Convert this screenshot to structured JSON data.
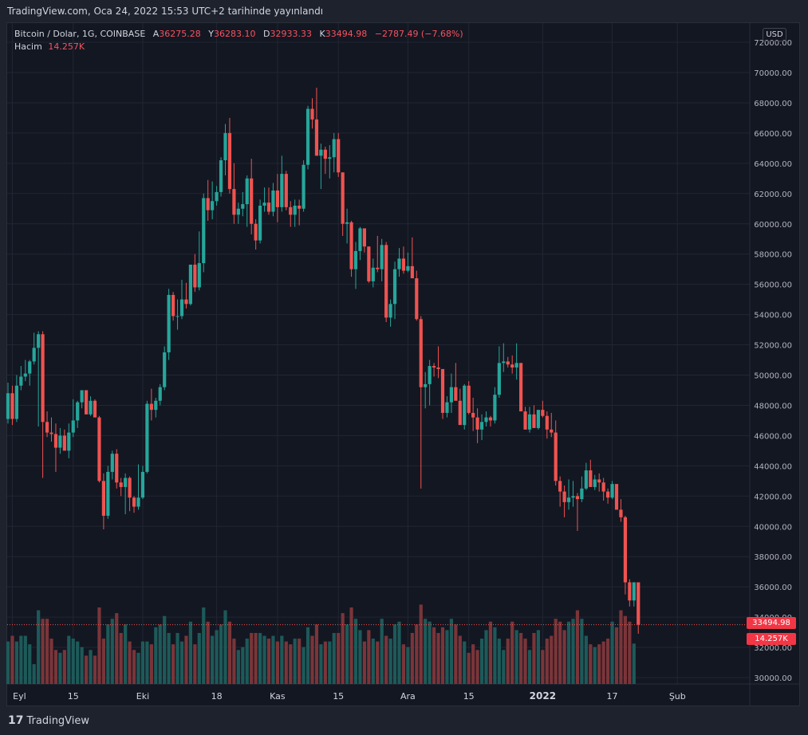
{
  "header": {
    "publish_info": "TradingView.com, Oca 24, 2022 15:53 UTC+2 tarihinde yayınlandı"
  },
  "legend": {
    "symbol": "Bitcoin / Dolar, 1G, COINBASE",
    "open_label": "A",
    "open": "36275.28",
    "high_label": "Y",
    "high": "36283.10",
    "low_label": "D",
    "low": "32933.33",
    "close_label": "K",
    "close": "33494.98",
    "change": "−2787.49 (−7.68%)",
    "volume_label": "Hacim",
    "volume": "14.257K"
  },
  "currency_badge": "USD",
  "last_price_tag": "33494.98",
  "last_volume_tag": "14.257K",
  "footer": {
    "logo": "17",
    "brand": "TradingView"
  },
  "colors": {
    "up": "#26a69a",
    "down": "#ef5350",
    "vol_up": "#1d5a59",
    "vol_down": "#7a3539",
    "grid": "#222633",
    "text": "#b2b5be",
    "background": "#131722"
  },
  "chart_data": {
    "type": "candlestick",
    "price_axis": {
      "min": 30000,
      "max": 72000,
      "step": 2000,
      "position": "right"
    },
    "x_tick_labels": [
      {
        "label": "Eyl",
        "date": "2021-09-01"
      },
      {
        "label": "15",
        "date": "2021-09-15"
      },
      {
        "label": "Eki",
        "date": "2021-10-01"
      },
      {
        "label": "18",
        "date": "2021-10-18"
      },
      {
        "label": "Kas",
        "date": "2021-11-01"
      },
      {
        "label": "15",
        "date": "2021-11-15"
      },
      {
        "label": "Ara",
        "date": "2021-12-01"
      },
      {
        "label": "15",
        "date": "2021-12-15"
      },
      {
        "label": "2022",
        "date": "2022-01-01"
      },
      {
        "label": "17",
        "date": "2022-01-17"
      },
      {
        "label": "Şub",
        "date": "2022-02-01"
      }
    ],
    "grid": true,
    "start_date": "2021-08-31",
    "ohlc": [
      [
        47100,
        49500,
        46800,
        48800
      ],
      [
        48800,
        49300,
        46700,
        47100
      ],
      [
        47100,
        50000,
        46900,
        49300
      ],
      [
        49300,
        50600,
        49000,
        49900
      ],
      [
        49900,
        51000,
        49600,
        50100
      ],
      [
        50100,
        51000,
        49300,
        50900
      ],
      [
        50900,
        52800,
        50700,
        51800
      ],
      [
        51800,
        52900,
        46600,
        52700
      ],
      [
        52700,
        52900,
        43200,
        46900
      ],
      [
        46900,
        47600,
        45900,
        46200
      ],
      [
        46200,
        47200,
        45600,
        46100
      ],
      [
        46100,
        46800,
        43600,
        45200
      ],
      [
        45200,
        46500,
        44800,
        46000
      ],
      [
        46000,
        46400,
        45000,
        45000
      ],
      [
        45000,
        46800,
        44500,
        46200
      ],
      [
        46200,
        48400,
        45900,
        47000
      ],
      [
        47000,
        48300,
        46500,
        48200
      ],
      [
        48200,
        48700,
        47800,
        49000
      ],
      [
        49000,
        48700,
        47600,
        47400
      ],
      [
        47400,
        48600,
        47300,
        48300
      ],
      [
        48300,
        48400,
        47400,
        47200
      ],
      [
        47200,
        47300,
        42900,
        43000
      ],
      [
        43000,
        43500,
        39800,
        40700
      ],
      [
        40700,
        44000,
        40500,
        43600
      ],
      [
        43600,
        45000,
        43100,
        44800
      ],
      [
        44800,
        45100,
        42500,
        42900
      ],
      [
        42900,
        43200,
        42000,
        42600
      ],
      [
        42600,
        43500,
        40800,
        43200
      ],
      [
        43200,
        43300,
        41000,
        41900
      ],
      [
        41900,
        42000,
        40900,
        41300
      ],
      [
        41300,
        44100,
        41100,
        41900
      ],
      [
        41900,
        44000,
        41800,
        43600
      ],
      [
        43600,
        48300,
        43500,
        48100
      ],
      [
        48100,
        49100,
        47000,
        47700
      ],
      [
        47700,
        48500,
        47200,
        48300
      ],
      [
        48300,
        49400,
        48000,
        49200
      ],
      [
        49200,
        51900,
        49000,
        51500
      ],
      [
        51500,
        55700,
        51000,
        55300
      ],
      [
        55300,
        55500,
        53600,
        53900
      ],
      [
        53900,
        55000,
        53000,
        53900
      ],
      [
        53900,
        56300,
        53700,
        55000
      ],
      [
        55000,
        56100,
        54400,
        54700
      ],
      [
        54700,
        57200,
        54600,
        57300
      ],
      [
        57300,
        58000,
        55500,
        55800
      ],
      [
        55800,
        59500,
        55600,
        57400
      ],
      [
        57400,
        62000,
        56800,
        61700
      ],
      [
        61700,
        62900,
        60200,
        60900
      ],
      [
        60900,
        62800,
        60300,
        61500
      ],
      [
        61500,
        62500,
        61200,
        62100
      ],
      [
        62100,
        64400,
        61800,
        64200
      ],
      [
        64200,
        66600,
        63200,
        66000
      ],
      [
        66000,
        67000,
        62000,
        62300
      ],
      [
        62300,
        64000,
        60000,
        60600
      ],
      [
        60600,
        61400,
        60000,
        61000
      ],
      [
        61000,
        62100,
        60500,
        61300
      ],
      [
        61300,
        63200,
        59800,
        63000
      ],
      [
        63000,
        64300,
        59300,
        60000
      ],
      [
        60000,
        60300,
        58300,
        58900
      ],
      [
        58900,
        61600,
        58700,
        61200
      ],
      [
        61200,
        62400,
        60800,
        61400
      ],
      [
        61400,
        62400,
        60600,
        60800
      ],
      [
        60800,
        62700,
        60500,
        62200
      ],
      [
        62200,
        63300,
        60100,
        61100
      ],
      [
        61100,
        64500,
        60800,
        63300
      ],
      [
        63300,
        63500,
        60900,
        61100
      ],
      [
        61100,
        61500,
        59800,
        60600
      ],
      [
        60600,
        61600,
        59800,
        61200
      ],
      [
        61200,
        61600,
        59900,
        61000
      ],
      [
        61000,
        64200,
        60800,
        63900
      ],
      [
        63900,
        67800,
        63600,
        67600
      ],
      [
        67600,
        68300,
        66300,
        66900
      ],
      [
        66900,
        69000,
        64700,
        64500
      ],
      [
        64500,
        65300,
        62300,
        64900
      ],
      [
        64900,
        65100,
        63300,
        64300
      ],
      [
        64300,
        65200,
        63000,
        64400
      ],
      [
        64400,
        66000,
        63400,
        65600
      ],
      [
        65600,
        66000,
        63100,
        63400
      ],
      [
        63400,
        63400,
        59200,
        60000
      ],
      [
        60000,
        61000,
        58700,
        60100
      ],
      [
        60100,
        60200,
        56500,
        57000
      ],
      [
        57000,
        58800,
        55700,
        58200
      ],
      [
        58200,
        59800,
        57600,
        59700
      ],
      [
        59700,
        59400,
        58100,
        58500
      ],
      [
        58500,
        58500,
        56100,
        56200
      ],
      [
        56200,
        57700,
        55800,
        57100
      ],
      [
        57100,
        59200,
        56800,
        57000
      ],
      [
        57000,
        59000,
        56200,
        58600
      ],
      [
        58600,
        58800,
        53500,
        53800
      ],
      [
        53800,
        55000,
        53200,
        54700
      ],
      [
        54700,
        57500,
        53700,
        57000
      ],
      [
        57000,
        58400,
        56500,
        57700
      ],
      [
        57700,
        58500,
        56700,
        56900
      ],
      [
        56900,
        58100,
        56800,
        57200
      ],
      [
        57200,
        59100,
        56500,
        56400
      ],
      [
        56400,
        56900,
        53600,
        53700
      ],
      [
        53700,
        53900,
        42500,
        49200
      ],
      [
        49200,
        50200,
        47800,
        49400
      ],
      [
        49400,
        51000,
        48000,
        50600
      ],
      [
        50600,
        50800,
        49900,
        50500
      ],
      [
        50500,
        51900,
        49800,
        50400
      ],
      [
        50400,
        50300,
        47100,
        47500
      ],
      [
        47500,
        48600,
        47200,
        48200
      ],
      [
        48200,
        50100,
        47500,
        49200
      ],
      [
        49200,
        50800,
        48500,
        48300
      ],
      [
        48300,
        49100,
        46700,
        46700
      ],
      [
        46700,
        49400,
        46400,
        49300
      ],
      [
        49300,
        49600,
        47400,
        47500
      ],
      [
        47500,
        48500,
        46300,
        47200
      ],
      [
        47200,
        47800,
        45500,
        46400
      ],
      [
        46400,
        47400,
        45700,
        46900
      ],
      [
        46900,
        47600,
        46600,
        47200
      ],
      [
        47200,
        47300,
        46600,
        47000
      ],
      [
        47000,
        49200,
        46800,
        48700
      ],
      [
        48700,
        51900,
        48500,
        50800
      ],
      [
        50800,
        52100,
        50200,
        50900
      ],
      [
        50900,
        51200,
        50500,
        50700
      ],
      [
        50700,
        51300,
        50100,
        50500
      ],
      [
        50500,
        52100,
        49700,
        50800
      ],
      [
        50800,
        50800,
        47700,
        47600
      ],
      [
        47600,
        47900,
        46400,
        46400
      ],
      [
        46400,
        47900,
        46200,
        47400
      ],
      [
        47400,
        48000,
        46600,
        46500
      ],
      [
        46500,
        47600,
        46400,
        47700
      ],
      [
        47700,
        48300,
        47200,
        47300
      ],
      [
        47300,
        47600,
        45800,
        46400
      ],
      [
        46400,
        47500,
        45900,
        46200
      ],
      [
        46200,
        47000,
        42700,
        43000
      ],
      [
        43000,
        43300,
        41300,
        42300
      ],
      [
        42300,
        42700,
        40600,
        41600
      ],
      [
        41600,
        43100,
        41100,
        41900
      ],
      [
        41900,
        43000,
        41300,
        42000
      ],
      [
        42000,
        42200,
        39700,
        41800
      ],
      [
        41800,
        43300,
        41600,
        42500
      ],
      [
        42500,
        44200,
        42400,
        43700
      ],
      [
        43700,
        44400,
        42800,
        42600
      ],
      [
        42600,
        43400,
        42400,
        43100
      ],
      [
        43100,
        43500,
        42300,
        42900
      ],
      [
        42900,
        43200,
        41700,
        42300
      ],
      [
        42300,
        42500,
        41500,
        41900
      ],
      [
        41900,
        43000,
        41800,
        42800
      ],
      [
        42800,
        42500,
        41100,
        41100
      ],
      [
        41100,
        41800,
        40300,
        40600
      ],
      [
        40600,
        40700,
        35500,
        36300
      ],
      [
        36300,
        36500,
        34700,
        35100
      ],
      [
        35100,
        36300,
        34700,
        36300
      ],
      [
        36300,
        36300,
        32900,
        33500
      ]
    ],
    "volume": [
      15,
      17,
      15,
      17,
      17,
      14,
      7,
      26,
      23,
      23,
      16,
      12,
      11,
      12,
      17,
      16,
      15,
      13,
      10,
      12,
      10,
      27,
      16,
      21,
      23,
      25,
      18,
      21,
      15,
      12,
      11,
      15,
      15,
      14,
      20,
      21,
      24,
      18,
      14,
      18,
      15,
      17,
      22,
      14,
      18,
      27,
      22,
      17,
      19,
      21,
      26,
      22,
      16,
      12,
      13,
      16,
      18,
      18,
      18,
      17,
      16,
      17,
      15,
      17,
      15,
      14,
      16,
      16,
      13,
      20,
      17,
      21,
      14,
      15,
      15,
      18,
      18,
      25,
      21,
      27,
      23,
      19,
      15,
      19,
      16,
      15,
      23,
      17,
      16,
      21,
      22,
      14,
      13,
      18,
      21,
      28,
      23,
      22,
      20,
      18,
      20,
      19,
      23,
      21,
      17,
      15,
      11,
      14,
      12,
      16,
      19,
      22,
      20,
      16,
      12,
      16,
      22,
      19,
      18,
      16,
      12,
      18,
      19,
      12,
      16,
      17,
      23,
      22,
      19,
      22,
      23,
      26,
      23,
      17,
      14,
      13,
      14,
      15,
      16,
      22,
      20,
      26,
      24,
      22,
      14.257
    ],
    "volume_axis_max": 45,
    "last_close": 33494.98
  }
}
